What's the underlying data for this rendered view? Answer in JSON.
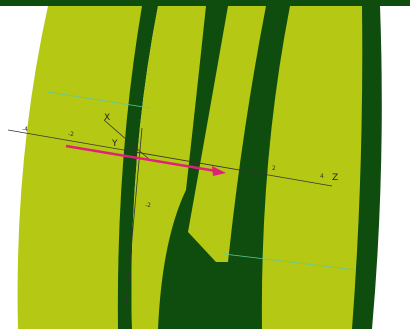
{
  "scene": {
    "axis_labels": [
      "X",
      "Y",
      "Z"
    ],
    "tick_labels": [
      "-4",
      "-2",
      "-2",
      "2",
      "4"
    ]
  }
}
